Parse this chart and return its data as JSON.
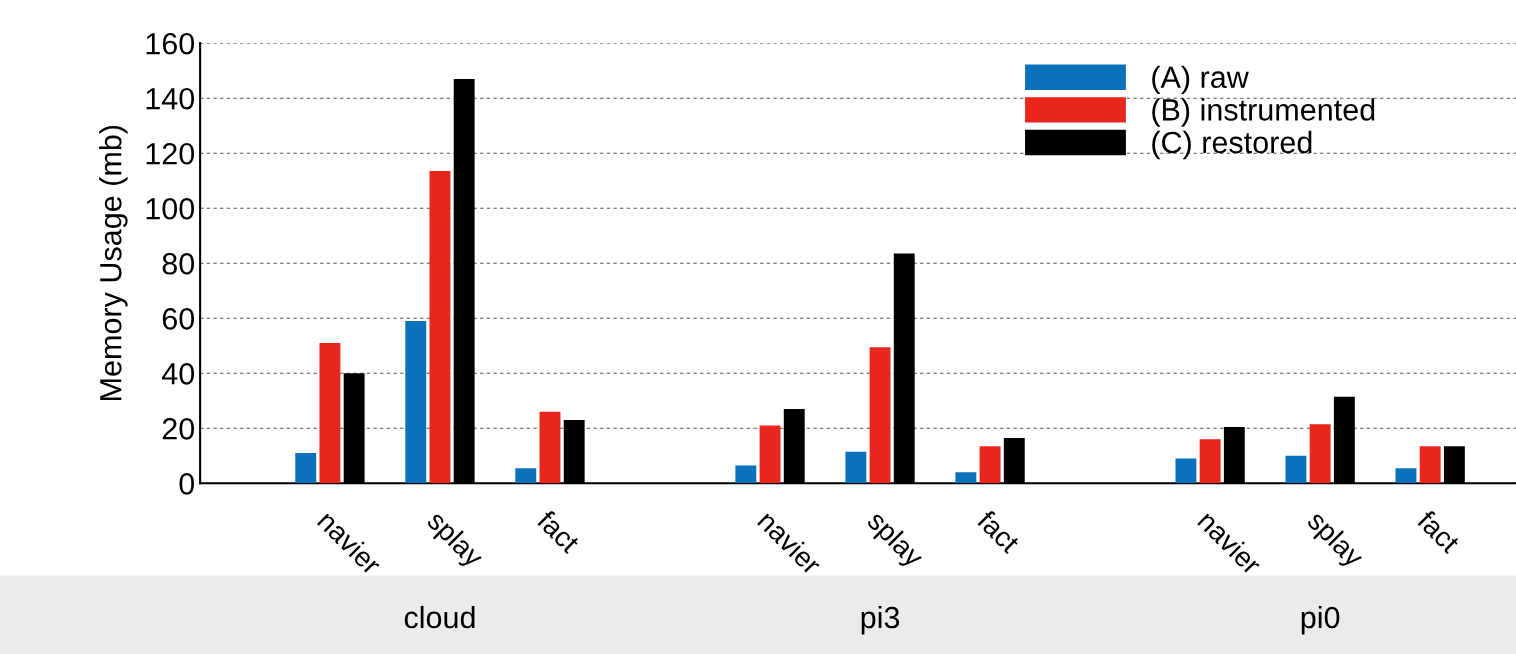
{
  "chart_data": {
    "type": "bar",
    "ylabel": "Memory Usage (mb)",
    "categories": [
      null,
      "navier",
      "splay",
      "fact",
      null,
      "navier",
      "splay",
      "fact",
      null,
      "navier",
      "splay",
      "fact"
    ],
    "series": [
      {
        "name": "(A) raw",
        "color": "#0a72ba",
        "values": [
          null,
          11,
          59,
          5.5,
          null,
          6.5,
          11.5,
          4,
          null,
          9,
          10,
          5.5
        ]
      },
      {
        "name": "(B) instrumented",
        "color": "#e8261b",
        "values": [
          null,
          51,
          113.5,
          26,
          null,
          21,
          49.5,
          13.5,
          null,
          16,
          21.5,
          13.5
        ]
      },
      {
        "name": "(C) restored",
        "color": "#000000",
        "values": [
          null,
          40,
          147,
          23,
          null,
          27,
          83.5,
          16.5,
          null,
          20.5,
          31.5,
          13.5
        ]
      }
    ],
    "ylim": [
      0,
      160
    ],
    "yticks": [
      0,
      20,
      40,
      60,
      80,
      100,
      120,
      140,
      160
    ],
    "grid": "y",
    "legend": "top right",
    "annotations": [
      "cloud",
      "pi3",
      "pi0"
    ]
  }
}
